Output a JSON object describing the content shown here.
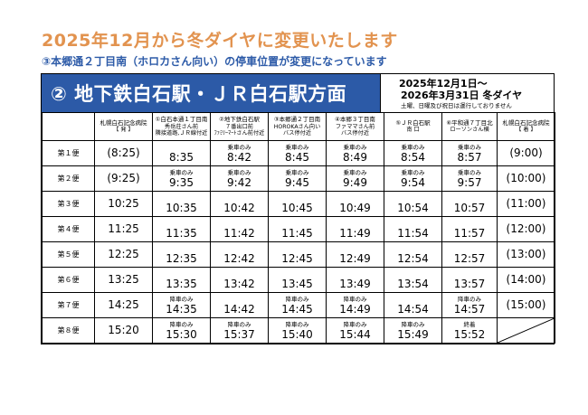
{
  "heading": "2025年12月から冬ダイヤに変更いたします",
  "notice": "③本郷通２丁目南（ホロカさん向い）の停車位置が変更になっています",
  "route_title": "② 地下鉄白石駅・ＪＲ白石駅方面",
  "period_line1": "2025年12月1日～",
  "period_line2": "2026年3月31日 冬ダイヤ",
  "period_note": "土曜、日曜及び祝日は運行しておりません",
  "stops": [
    {
      "line1": "札幌白石記念病院",
      "line2": "【 発 】"
    },
    {
      "line1": "①白石本通１丁目南",
      "line2": "秀岳荘さん前",
      "line3": "隣接道路,ＪＲ線付近"
    },
    {
      "line1": "②地下鉄白石駅",
      "line2": "７番出口前",
      "line3": "ﾌｧﾐﾘｰﾏｰﾄさん前付近"
    },
    {
      "line1": "③本郷通２丁目南",
      "line2": "HOROKAさん向い",
      "line3": "バス停付近"
    },
    {
      "line1": "④本郷３丁目南",
      "line2": "ファママさん前",
      "line3": "バス停付近"
    },
    {
      "line1": "⑤ＪＲ白石駅",
      "line2": "南 口"
    },
    {
      "line1": "⑥平和通７丁目北",
      "line2": "ローソンさん横"
    },
    {
      "line1": "札幌白石記念病院",
      "line2": "【 着 】"
    }
  ],
  "rows": [
    {
      "trip": "第１便",
      "start": "(8:25)",
      "times": [
        {
          "note": "",
          "t": "8:35"
        },
        {
          "note": "乗車のみ",
          "t": "8:42"
        },
        {
          "note": "乗車のみ",
          "t": "8:45"
        },
        {
          "note": "乗車のみ",
          "t": "8:49"
        },
        {
          "note": "乗車のみ",
          "t": "8:54"
        },
        {
          "note": "乗車のみ",
          "t": "8:57"
        }
      ],
      "end": "(9:00)"
    },
    {
      "trip": "第２便",
      "start": "(9:25)",
      "times": [
        {
          "note": "乗車のみ",
          "t": "9:35"
        },
        {
          "note": "乗車のみ",
          "t": "9:42"
        },
        {
          "note": "乗車のみ",
          "t": "9:45"
        },
        {
          "note": "乗車のみ",
          "t": "9:49"
        },
        {
          "note": "乗車のみ",
          "t": "9:54"
        },
        {
          "note": "乗車のみ",
          "t": "9:57"
        }
      ],
      "end": "(10:00)"
    },
    {
      "trip": "第３便",
      "start": "10:25",
      "times": [
        {
          "note": "",
          "t": "10:35"
        },
        {
          "note": "",
          "t": "10:42"
        },
        {
          "note": "",
          "t": "10:45"
        },
        {
          "note": "",
          "t": "10:49"
        },
        {
          "note": "",
          "t": "10:54"
        },
        {
          "note": "",
          "t": "10:57"
        }
      ],
      "end": "(11:00)"
    },
    {
      "trip": "第４便",
      "start": "11:25",
      "times": [
        {
          "note": "",
          "t": "11:35"
        },
        {
          "note": "",
          "t": "11:42"
        },
        {
          "note": "",
          "t": "11:45"
        },
        {
          "note": "",
          "t": "11:49"
        },
        {
          "note": "",
          "t": "11:54"
        },
        {
          "note": "",
          "t": "11:57"
        }
      ],
      "end": "(12:00)"
    },
    {
      "trip": "第５便",
      "start": "12:25",
      "times": [
        {
          "note": "",
          "t": "12:35"
        },
        {
          "note": "",
          "t": "12:42"
        },
        {
          "note": "",
          "t": "12:45"
        },
        {
          "note": "",
          "t": "12:49"
        },
        {
          "note": "",
          "t": "12:54"
        },
        {
          "note": "",
          "t": "12:57"
        }
      ],
      "end": "(13:00)"
    },
    {
      "trip": "第６便",
      "start": "13:25",
      "times": [
        {
          "note": "",
          "t": "13:35"
        },
        {
          "note": "",
          "t": "13:42"
        },
        {
          "note": "",
          "t": "13:45"
        },
        {
          "note": "",
          "t": "13:49"
        },
        {
          "note": "",
          "t": "13:54"
        },
        {
          "note": "",
          "t": "13:57"
        }
      ],
      "end": "(14:00)"
    },
    {
      "trip": "第７便",
      "start": "14:25",
      "times": [
        {
          "note": "降車のみ",
          "t": "14:35"
        },
        {
          "note": "",
          "t": "14:42"
        },
        {
          "note": "降車のみ",
          "t": "14:45"
        },
        {
          "note": "降車のみ",
          "t": "14:49"
        },
        {
          "note": "",
          "t": "14:54"
        },
        {
          "note": "降車のみ",
          "t": "14:57"
        }
      ],
      "end": "(15:00)"
    },
    {
      "trip": "第８便",
      "start": "15:20",
      "times": [
        {
          "note": "降車のみ",
          "t": "15:30"
        },
        {
          "note": "降車のみ",
          "t": "15:37"
        },
        {
          "note": "降車のみ",
          "t": "15:40"
        },
        {
          "note": "降車のみ",
          "t": "15:44"
        },
        {
          "note": "降車のみ",
          "t": "15:49"
        },
        {
          "note": "終着",
          "t": "15:52"
        }
      ],
      "end": ""
    }
  ]
}
